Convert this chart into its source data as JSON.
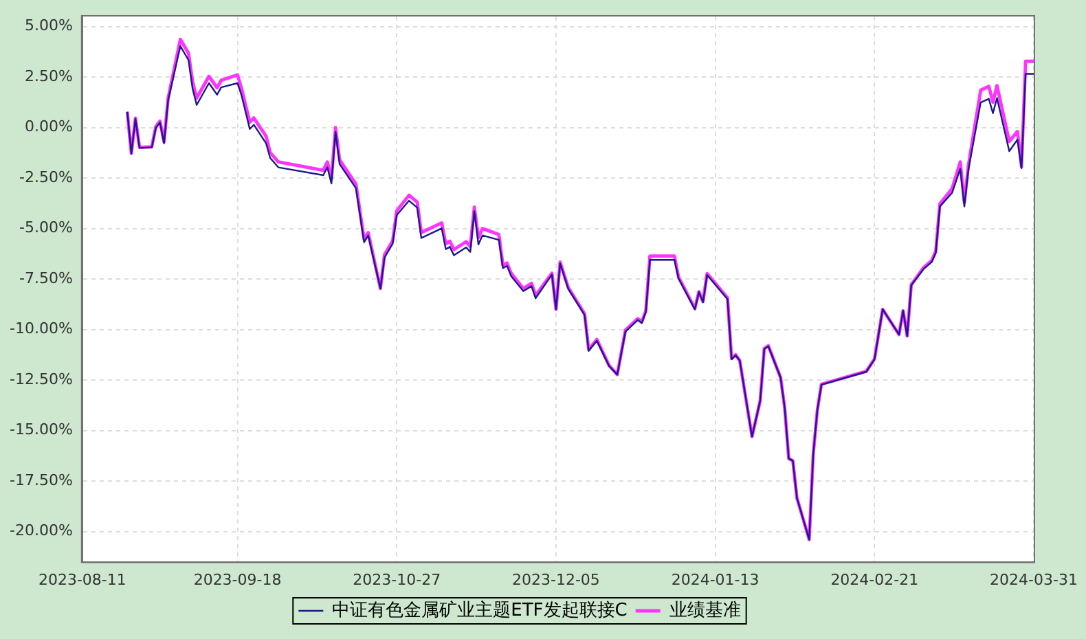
{
  "chart_data": {
    "type": "line",
    "marker": "none",
    "grid": true,
    "legend": "bottom",
    "x": [
      "2023-08-22",
      "2023-08-23",
      "2023-08-24",
      "2023-08-25",
      "2023-08-28",
      "2023-08-29",
      "2023-08-30",
      "2023-08-31",
      "2023-09-01",
      "2023-09-04",
      "2023-09-06",
      "2023-09-07",
      "2023-09-08",
      "2023-09-11",
      "2023-09-13",
      "2023-09-14",
      "2023-09-18",
      "2023-09-19",
      "2023-09-21",
      "2023-09-22",
      "2023-09-25",
      "2023-09-26",
      "2023-09-28",
      "2023-10-09",
      "2023-10-10",
      "2023-10-11",
      "2023-10-12",
      "2023-10-13",
      "2023-10-17",
      "2023-10-19",
      "2023-10-20",
      "2023-10-23",
      "2023-10-24",
      "2023-10-26",
      "2023-10-27",
      "2023-10-30",
      "2023-11-01",
      "2023-11-02",
      "2023-11-07",
      "2023-11-08",
      "2023-11-09",
      "2023-11-10",
      "2023-11-13",
      "2023-11-14",
      "2023-11-15",
      "2023-11-16",
      "2023-11-17",
      "2023-11-21",
      "2023-11-22",
      "2023-11-23",
      "2023-11-24",
      "2023-11-27",
      "2023-11-29",
      "2023-11-30",
      "2023-12-04",
      "2023-12-05",
      "2023-12-06",
      "2023-12-08",
      "2023-12-12",
      "2023-12-13",
      "2023-12-15",
      "2023-12-18",
      "2023-12-20",
      "2023-12-22",
      "2023-12-25",
      "2023-12-26",
      "2023-12-27",
      "2023-12-28",
      "2024-01-03",
      "2024-01-04",
      "2024-01-08",
      "2024-01-09",
      "2024-01-10",
      "2024-01-11",
      "2024-01-16",
      "2024-01-17",
      "2024-01-18",
      "2024-01-19",
      "2024-01-22",
      "2024-01-24",
      "2024-01-25",
      "2024-01-26",
      "2024-01-29",
      "2024-01-30",
      "2024-01-31",
      "2024-02-01",
      "2024-02-02",
      "2024-02-05",
      "2024-02-06",
      "2024-02-07",
      "2024-02-08",
      "2024-02-19",
      "2024-02-21",
      "2024-02-23",
      "2024-02-27",
      "2024-02-28",
      "2024-02-29",
      "2024-03-01",
      "2024-03-04",
      "2024-03-06",
      "2024-03-07",
      "2024-03-08",
      "2024-03-11",
      "2024-03-13",
      "2024-03-14",
      "2024-03-15",
      "2024-03-18",
      "2024-03-20",
      "2024-03-21",
      "2024-03-22",
      "2024-03-25",
      "2024-03-27",
      "2024-03-28",
      "2024-03-29",
      "2024-03-31"
    ],
    "series": [
      {
        "name": "中证有色金属矿业主题ETF发起联接C",
        "color": "#1a1a8c",
        "values": [
          0.78,
          -1.28,
          0.43,
          -1.01,
          -0.98,
          -0.02,
          0.25,
          -0.78,
          1.35,
          4.03,
          3.34,
          1.92,
          1.12,
          2.2,
          1.63,
          1.99,
          2.2,
          1.58,
          -0.07,
          0.14,
          -0.78,
          -1.51,
          -1.97,
          -2.36,
          -1.97,
          -2.77,
          -0.21,
          -1.81,
          -3.0,
          -5.68,
          -5.34,
          -7.97,
          -6.44,
          -5.75,
          -4.33,
          -3.62,
          -3.96,
          -5.47,
          -4.99,
          -6.02,
          -5.91,
          -6.32,
          -5.93,
          -6.16,
          -4.14,
          -5.79,
          -5.34,
          -5.56,
          -6.96,
          -6.85,
          -7.35,
          -8.1,
          -7.85,
          -8.45,
          -7.28,
          -9.0,
          -6.73,
          -7.99,
          -9.29,
          -11.06,
          -10.56,
          -11.81,
          -12.23,
          -10.1,
          -9.53,
          -9.68,
          -9.13,
          -6.55,
          -6.55,
          -7.47,
          -9.0,
          -8.15,
          -8.65,
          -7.3,
          -8.5,
          -11.47,
          -11.28,
          -11.54,
          -15.3,
          -13.53,
          -10.97,
          -10.83,
          -12.38,
          -13.87,
          -16.39,
          -16.5,
          -18.34,
          -20.4,
          -16.16,
          -13.99,
          -12.73,
          -12.09,
          -11.47,
          -9.0,
          -10.25,
          -9.07,
          -10.32,
          -7.81,
          -7.01,
          -6.66,
          -6.2,
          -3.91,
          -3.23,
          -2.04,
          -3.91,
          -2.08,
          1.24,
          1.42,
          0.71,
          1.46,
          -1.17,
          -0.6,
          -2.01,
          2.66,
          2.66
        ]
      },
      {
        "name": "业绩基准",
        "color": "#ff33ff",
        "values": [
          0.78,
          -1.28,
          0.47,
          -0.98,
          -0.95,
          0.05,
          0.32,
          -0.71,
          1.45,
          4.37,
          3.68,
          2.27,
          1.46,
          2.54,
          1.97,
          2.34,
          2.61,
          1.92,
          0.27,
          0.48,
          -0.43,
          -1.24,
          -1.7,
          -2.12,
          -1.7,
          -2.56,
          0.0,
          -1.6,
          -2.8,
          -5.54,
          -5.2,
          -7.97,
          -6.3,
          -5.61,
          -4.12,
          -3.35,
          -3.69,
          -5.2,
          -4.72,
          -5.75,
          -5.63,
          -6.04,
          -5.65,
          -5.89,
          -3.94,
          -5.45,
          -5.0,
          -5.29,
          -6.82,
          -6.71,
          -7.21,
          -7.97,
          -7.71,
          -8.31,
          -7.21,
          -9.0,
          -6.66,
          -7.92,
          -9.22,
          -10.99,
          -10.49,
          -11.78,
          -12.23,
          -10.03,
          -9.46,
          -9.62,
          -9.07,
          -6.36,
          -6.36,
          -7.4,
          -8.96,
          -8.12,
          -8.62,
          -7.23,
          -8.43,
          -11.44,
          -11.25,
          -11.54,
          -15.3,
          -13.53,
          -10.94,
          -10.8,
          -12.38,
          -13.87,
          -16.39,
          -16.5,
          -18.34,
          -20.4,
          -16.16,
          -13.99,
          -12.71,
          -12.07,
          -11.45,
          -9.0,
          -10.25,
          -9.07,
          -10.32,
          -7.78,
          -6.94,
          -6.59,
          -6.13,
          -3.78,
          -3.02,
          -1.7,
          -3.71,
          -1.87,
          1.85,
          2.04,
          1.26,
          2.08,
          -0.69,
          -0.19,
          -1.94,
          3.28,
          3.28
        ]
      }
    ],
    "xlim": [
      "2023-08-11",
      "2024-03-31"
    ],
    "xticks": [
      "2023-08-11",
      "2023-09-18",
      "2023-10-27",
      "2023-12-05",
      "2024-01-13",
      "2024-02-21",
      "2024-03-31"
    ],
    "ylim": [
      -21.5,
      5.5
    ],
    "yticks": [
      {
        "value": -20,
        "label": "-20.00%"
      },
      {
        "value": -17.5,
        "label": "-17.50%"
      },
      {
        "value": -15,
        "label": "-15.00%"
      },
      {
        "value": -12.5,
        "label": "-12.50%"
      },
      {
        "value": -10,
        "label": "-10.00%"
      },
      {
        "value": -7.5,
        "label": "-7.50%"
      },
      {
        "value": -5,
        "label": "-5.00%"
      },
      {
        "value": -2.5,
        "label": "-2.50%"
      },
      {
        "value": 0,
        "label": "0.00%"
      },
      {
        "value": 2.5,
        "label": "2.50%"
      },
      {
        "value": 5,
        "label": "5.00%"
      }
    ]
  }
}
